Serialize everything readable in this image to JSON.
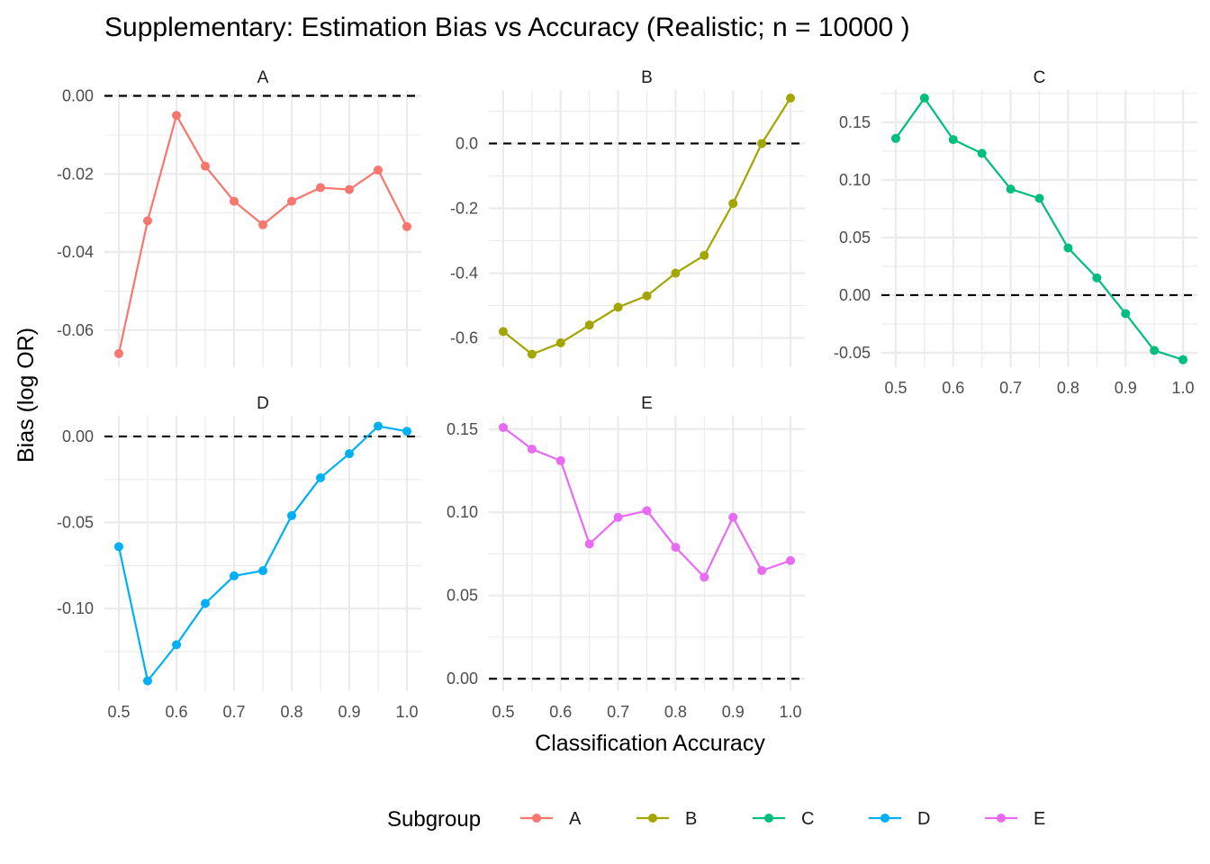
{
  "chart_data": {
    "type": "line",
    "title": "Supplementary: Estimation Bias vs Accuracy (Realistic; n = 10000 )",
    "xlabel": "Classification Accuracy",
    "ylabel": "Bias (log OR)",
    "legend": {
      "title": "Subgroup",
      "position": "bottom",
      "entries": [
        "A",
        "B",
        "C",
        "D",
        "E"
      ]
    },
    "grid": true,
    "reference_line": {
      "y": 0,
      "style": "dashed"
    },
    "x": [
      0.5,
      0.55,
      0.6,
      0.65,
      0.7,
      0.75,
      0.8,
      0.85,
      0.9,
      0.95,
      1.0
    ],
    "x_ticks": [
      "0.5",
      "0.6",
      "0.7",
      "0.8",
      "0.9",
      "1.0"
    ],
    "xlim": [
      0.475,
      1.025
    ],
    "panels": [
      {
        "name": "A",
        "color": "#F8766D",
        "ylim": [
          -0.0695,
          0.0015
        ],
        "y_ticks": [
          "0.00",
          "-0.02",
          "-0.04",
          "-0.06"
        ],
        "values": [
          -0.066,
          -0.032,
          -0.005,
          -0.018,
          -0.027,
          -0.033,
          -0.027,
          -0.0235,
          -0.024,
          -0.019,
          -0.0335
        ]
      },
      {
        "name": "B",
        "color": "#A3A500",
        "ylim": [
          -0.69,
          0.165
        ],
        "y_ticks": [
          "0.0",
          "-0.2",
          "-0.4",
          "-0.6"
        ],
        "values": [
          -0.58,
          -0.65,
          -0.615,
          -0.56,
          -0.505,
          -0.47,
          -0.4,
          -0.345,
          -0.185,
          0.0,
          0.14
        ]
      },
      {
        "name": "C",
        "color": "#00BF7D",
        "ylim": [
          -0.0625,
          0.178
        ],
        "y_ticks": [
          "0.15",
          "0.10",
          "0.05",
          "0.00",
          "-0.05"
        ],
        "values": [
          0.136,
          0.171,
          0.135,
          0.123,
          0.092,
          0.084,
          0.041,
          0.015,
          -0.016,
          -0.048,
          -0.056
        ]
      },
      {
        "name": "D",
        "color": "#00B0F6",
        "ylim": [
          -0.148,
          0.012
        ],
        "y_ticks": [
          "0.00",
          "-0.05",
          "-0.10"
        ],
        "values": [
          -0.064,
          -0.142,
          -0.121,
          -0.097,
          -0.081,
          -0.078,
          -0.046,
          -0.024,
          -0.01,
          0.006,
          0.003
        ]
      },
      {
        "name": "E",
        "color": "#E76BF3",
        "ylim": [
          -0.0075,
          0.158
        ],
        "y_ticks": [
          "0.15",
          "0.10",
          "0.05",
          "0.00"
        ],
        "values": [
          0.151,
          0.138,
          0.131,
          0.081,
          0.097,
          0.101,
          0.079,
          0.061,
          0.097,
          0.065,
          0.071
        ]
      }
    ]
  }
}
